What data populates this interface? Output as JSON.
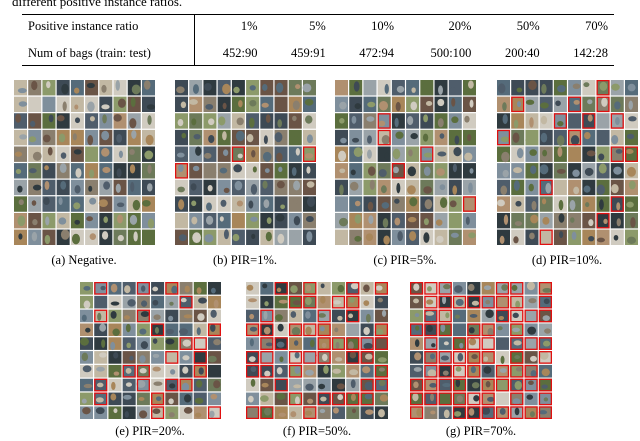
{
  "top_text": "different positive instance ratios.",
  "table": {
    "rows": [
      [
        "Positive instance ratio",
        "1%",
        "5%",
        "10%",
        "20%",
        "50%",
        "70%"
      ],
      [
        "Num of bags (train: test)",
        "452:90",
        "459:91",
        "472:94",
        "500:100",
        "200:40",
        "142:28"
      ]
    ]
  },
  "figures": [
    {
      "caption": "(a)  Negative."
    },
    {
      "caption": "(b)  PIR=1%."
    },
    {
      "caption": "(c)  PIR=5%."
    },
    {
      "caption": "(d)  PIR=10%."
    },
    {
      "caption": "(e) PIR=20%."
    },
    {
      "caption": "(f) PIR=50%."
    },
    {
      "caption": "(g) PIR=70%."
    }
  ]
}
